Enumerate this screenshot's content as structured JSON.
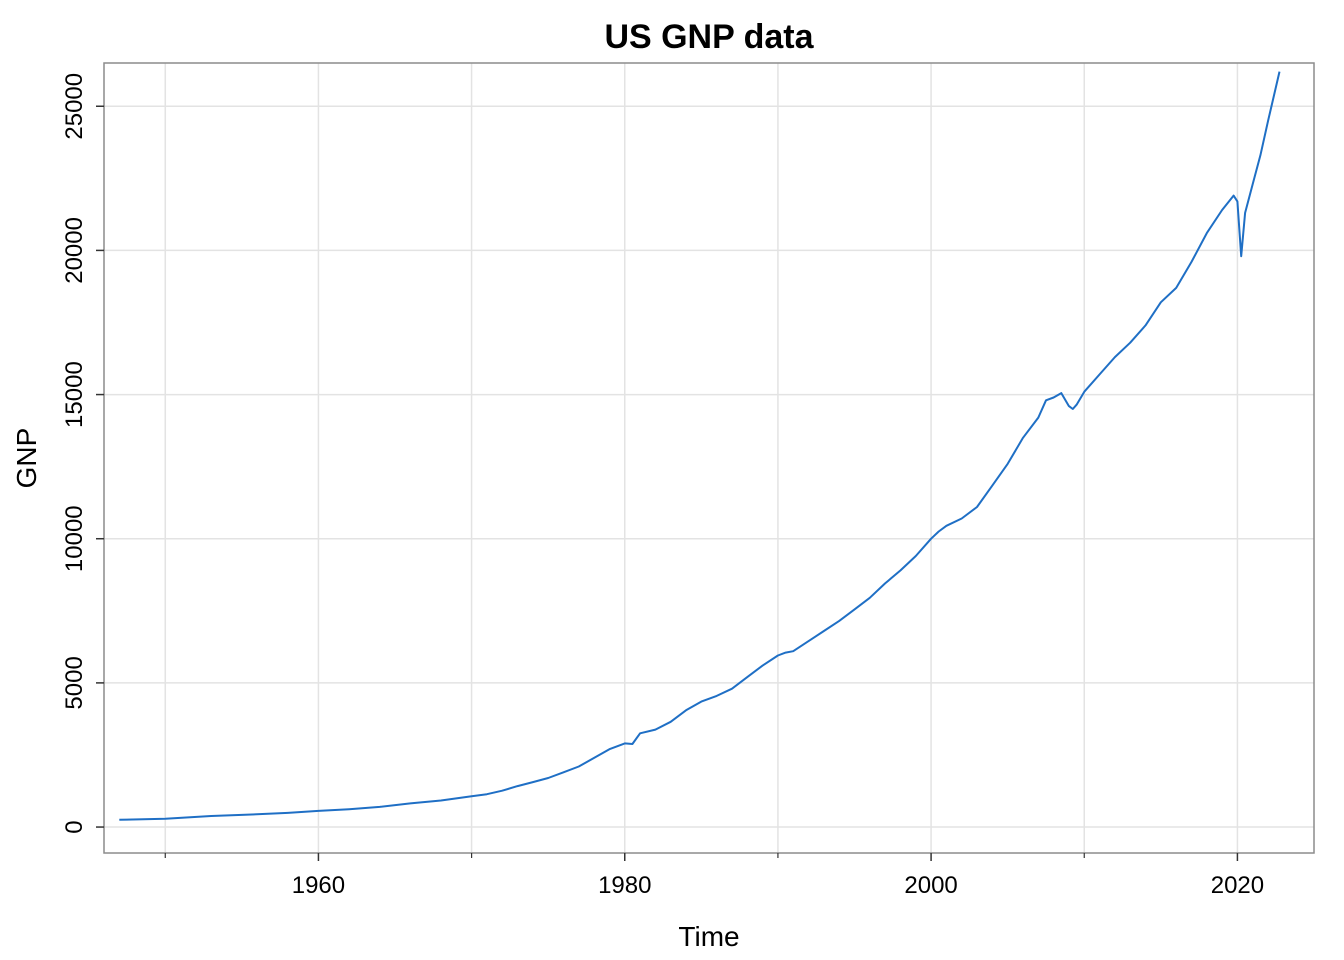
{
  "chart_data": {
    "type": "line",
    "title": "US GNP data",
    "xlabel": "Time",
    "ylabel": "GNP",
    "xlim": [
      1946,
      2025
    ],
    "ylim": [
      -900,
      26500
    ],
    "x_major_ticks": [
      1960,
      1980,
      2000,
      2020
    ],
    "x_major_tick_labels": [
      "1960",
      "1980",
      "2000",
      "2020"
    ],
    "x_minor_ticks": [
      1950,
      1970,
      1990,
      2010
    ],
    "y_ticks": [
      0,
      5000,
      10000,
      15000,
      20000,
      25000
    ],
    "y_tick_labels": [
      "0",
      "5000",
      "10000",
      "15000",
      "20000",
      "25000"
    ],
    "grid": true,
    "colors": {
      "line": "#1f6fc5",
      "grid": "#e3e3e3",
      "frame": "#8c8c8c"
    },
    "series": [
      {
        "x": [
          1947.0,
          1950.0,
          1953.0,
          1955.0,
          1958.0,
          1960.0,
          1962.0,
          1964.0,
          1966.0,
          1968.0,
          1970.0,
          1971.0,
          1972.0,
          1973.0,
          1974.0,
          1975.0,
          1976.0,
          1977.0,
          1978.0,
          1979.0,
          1980.0,
          1980.5,
          1981.0,
          1982.0,
          1983.0,
          1984.0,
          1985.0,
          1986.0,
          1987.0,
          1988.0,
          1989.0,
          1990.0,
          1990.5,
          1991.0,
          1992.0,
          1993.0,
          1994.0,
          1995.0,
          1996.0,
          1997.0,
          1998.0,
          1999.0,
          2000.0,
          2000.5,
          2001.0,
          2002.0,
          2003.0,
          2004.0,
          2005.0,
          2006.0,
          2007.0,
          2007.5,
          2008.0,
          2008.5,
          2009.0,
          2009.25,
          2009.5,
          2010.0,
          2011.0,
          2012.0,
          2013.0,
          2014.0,
          2015.0,
          2016.0,
          2017.0,
          2018.0,
          2019.0,
          2019.75,
          2020.0,
          2020.25,
          2020.5,
          2021.0,
          2021.5,
          2022.0,
          2022.75
        ],
        "values": [
          250,
          290,
          385,
          420,
          490,
          560,
          620,
          700,
          820,
          920,
          1070,
          1140,
          1260,
          1420,
          1560,
          1700,
          1900,
          2100,
          2400,
          2700,
          2900,
          2880,
          3250,
          3380,
          3650,
          4050,
          4350,
          4550,
          4800,
          5200,
          5600,
          5950,
          6050,
          6100,
          6450,
          6800,
          7150,
          7550,
          7950,
          8450,
          8900,
          9400,
          10000,
          10250,
          10450,
          10700,
          11100,
          11850,
          12600,
          13500,
          14200,
          14800,
          14900,
          15050,
          14600,
          14500,
          14650,
          15100,
          15700,
          16300,
          16800,
          17400,
          18200,
          18700,
          19600,
          20600,
          21400,
          21900,
          21700,
          19800,
          21300,
          22300,
          23300,
          24500,
          26200
        ]
      }
    ]
  }
}
